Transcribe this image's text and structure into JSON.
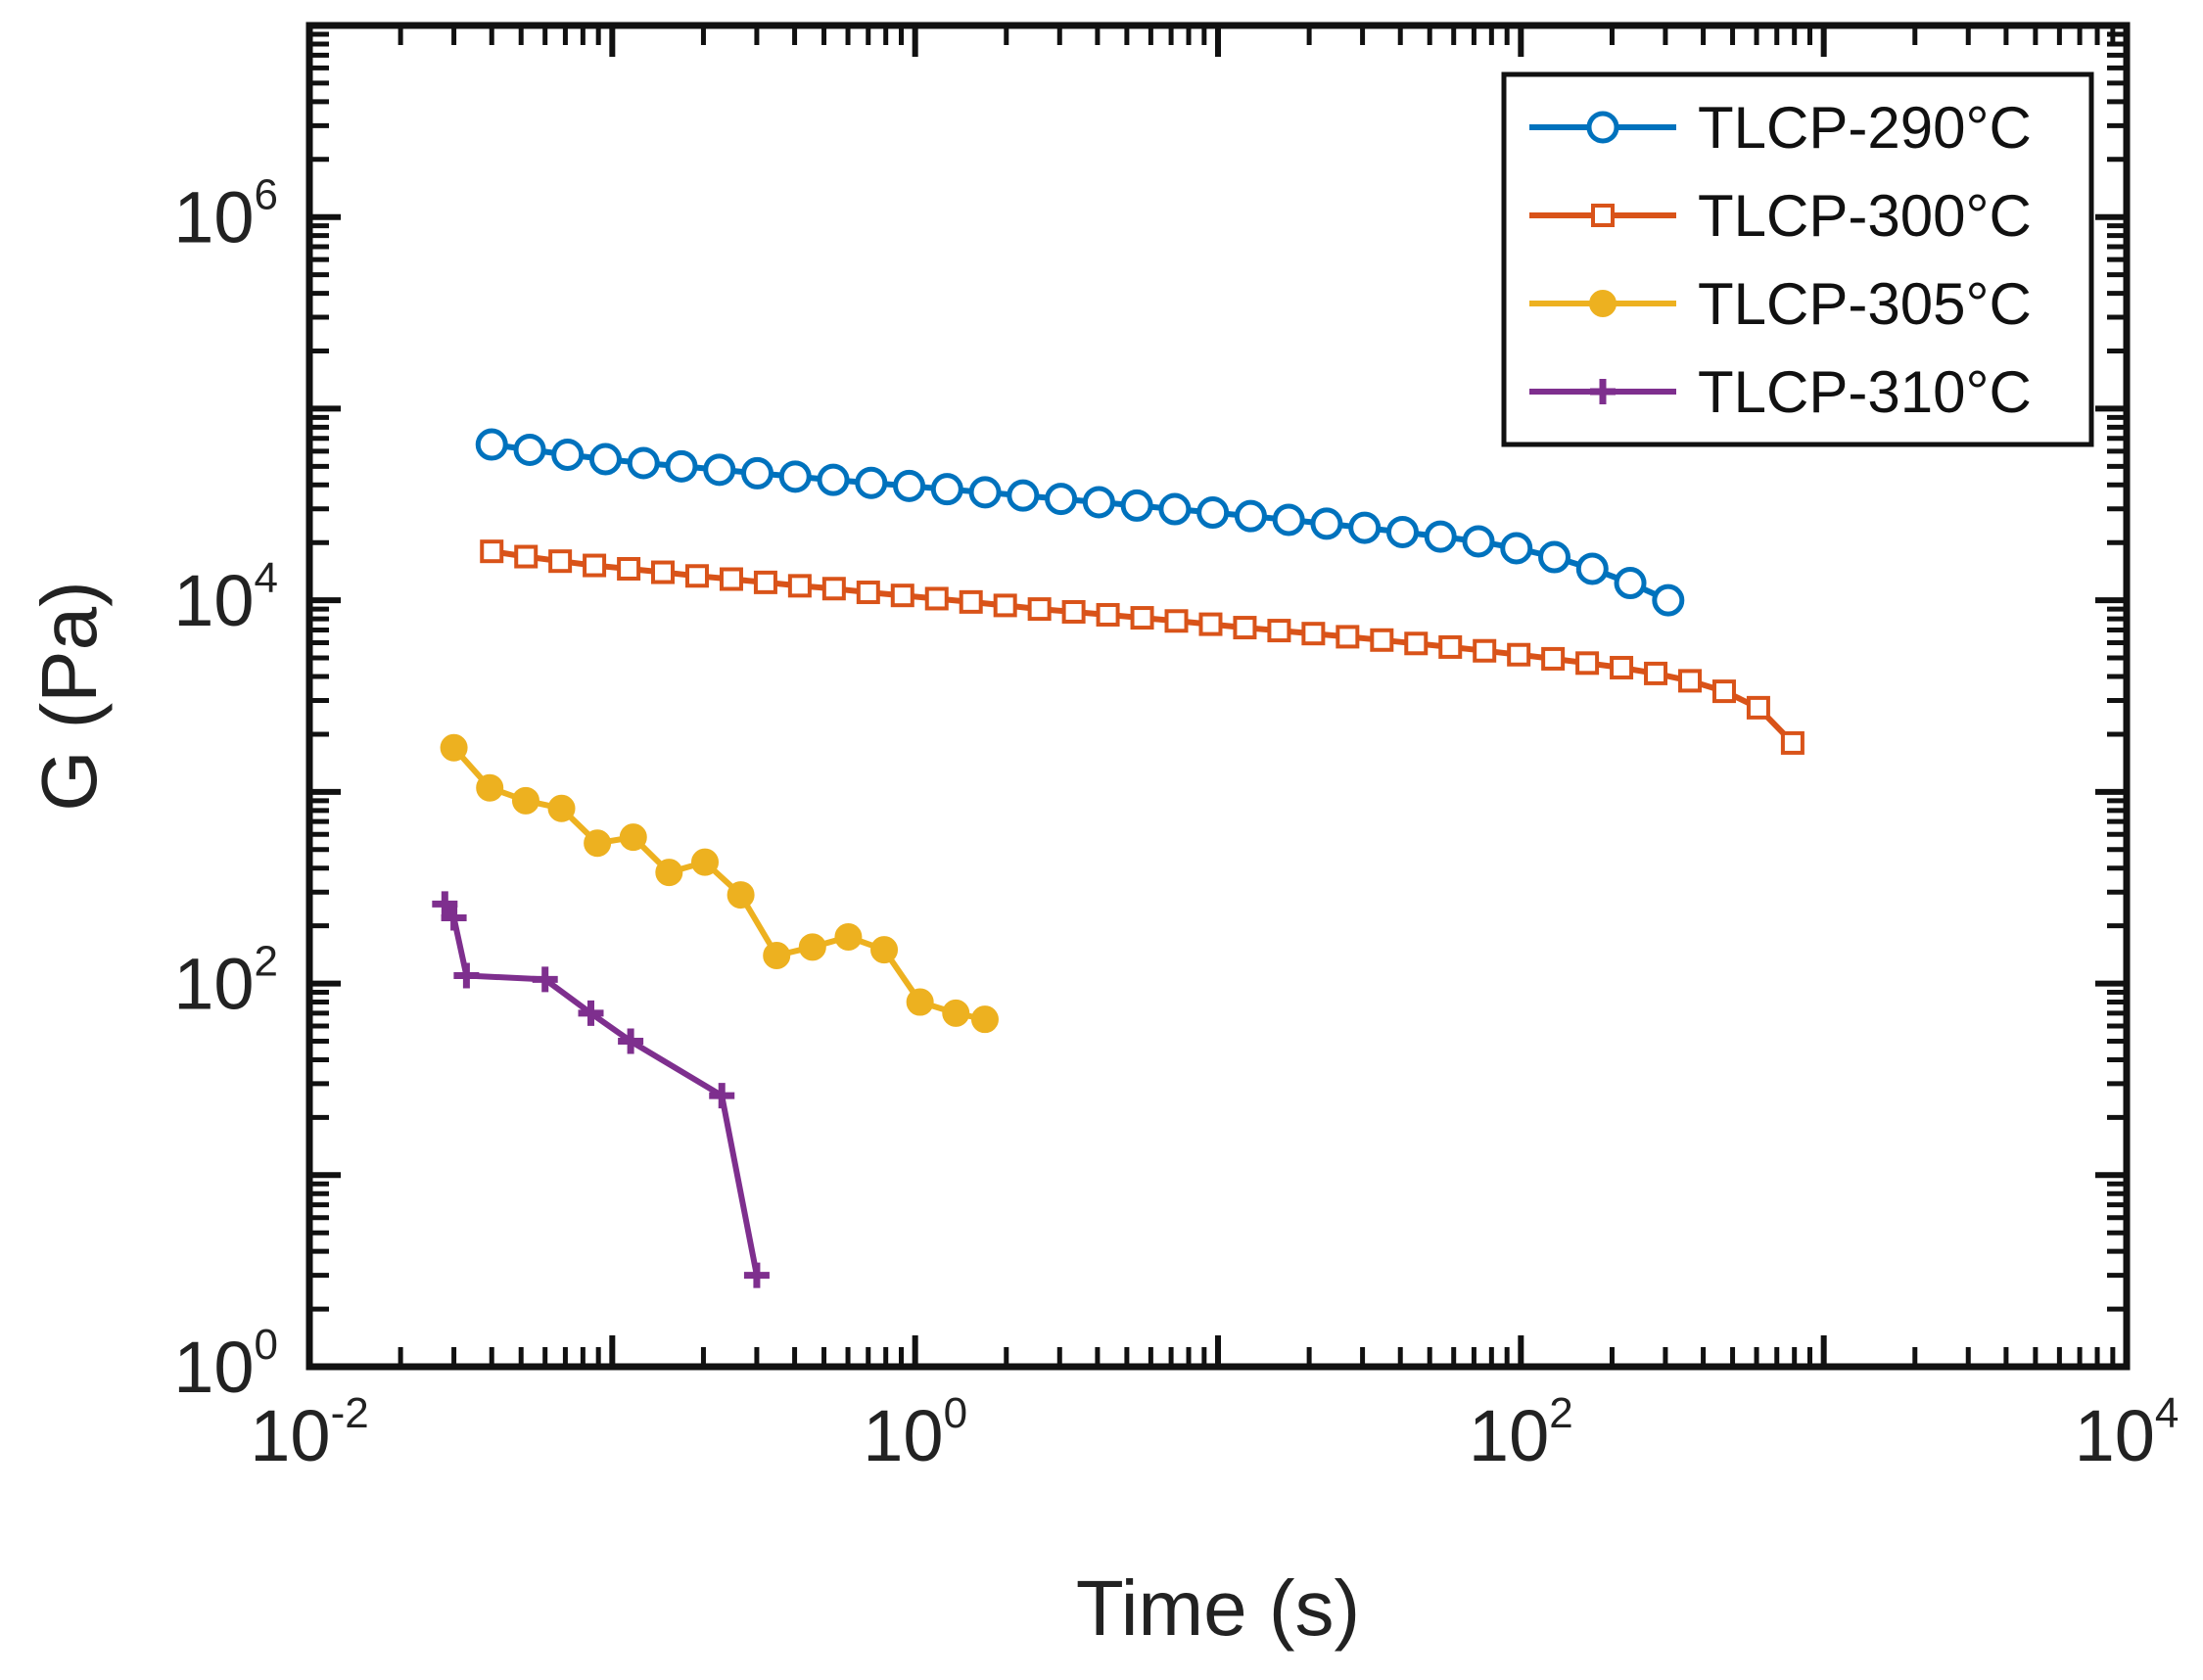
{
  "chart_data": {
    "type": "line",
    "title": "",
    "xlabel": "Time (s)",
    "ylabel": "G (Pa)",
    "xscale": "log",
    "yscale": "log",
    "xlim_exp": [
      -2,
      4
    ],
    "ylim_exp": [
      0,
      7
    ],
    "x_tick_labels": [
      {
        "base": "10",
        "exp": "-2"
      },
      {
        "base": "10",
        "exp": "0"
      },
      {
        "base": "10",
        "exp": "2"
      },
      {
        "base": "10",
        "exp": "4"
      }
    ],
    "y_tick_labels": [
      {
        "base": "10",
        "exp": "0"
      },
      {
        "base": "10",
        "exp": "2"
      },
      {
        "base": "10",
        "exp": "4"
      },
      {
        "base": "10",
        "exp": "6"
      }
    ],
    "legend_position": "top-right",
    "series": [
      {
        "name": "TLCP-290°C",
        "color": "#0072BD",
        "marker": "circle-open",
        "x": [
          0.04,
          0.0534,
          0.0712,
          0.095,
          0.1268,
          0.1692,
          0.2258,
          0.3013,
          0.402,
          0.5366,
          0.716,
          0.9555,
          1.275,
          1.7016,
          2.2707,
          3.0302,
          4.0437,
          5.3962,
          7.2012,
          9.6098,
          12.824,
          17.113,
          22.838,
          30.476,
          40.669,
          54.272,
          72.425,
          96.65,
          128.98,
          172.12,
          229.69,
          306.52
        ],
        "y": [
          65000,
          61000,
          57500,
          54500,
          52000,
          50000,
          48000,
          46000,
          44200,
          42500,
          41000,
          39500,
          38000,
          36600,
          35200,
          33800,
          32500,
          31200,
          29900,
          28700,
          27500,
          26300,
          25100,
          23900,
          22700,
          21500,
          20300,
          18700,
          16800,
          14600,
          12300,
          10000
        ]
      },
      {
        "name": "TLCP-300°C",
        "color": "#D95319",
        "marker": "square-open",
        "x": [
          0.04,
          0.0519,
          0.0673,
          0.0873,
          0.1133,
          0.1469,
          0.1906,
          0.2473,
          0.3208,
          0.4161,
          0.5398,
          0.7003,
          0.9085,
          1.1786,
          1.529,
          1.9836,
          2.5733,
          3.3383,
          4.3307,
          5.6182,
          7.2885,
          9.4553,
          12.266,
          15.913,
          20.644,
          26.781,
          34.743,
          45.071,
          58.47,
          75.853,
          98.403,
          127.66,
          165.61,
          214.84,
          278.71,
          361.57,
          469.06,
          608.51,
          789.41
        ],
        "y": [
          18000,
          16900,
          16000,
          15200,
          14600,
          14000,
          13400,
          12900,
          12400,
          11900,
          11500,
          11000,
          10600,
          10200,
          9800,
          9400,
          9000,
          8700,
          8400,
          8100,
          7800,
          7500,
          7200,
          6950,
          6700,
          6450,
          6200,
          5950,
          5700,
          5450,
          5200,
          4950,
          4700,
          4450,
          4150,
          3800,
          3350,
          2750,
          1800
        ]
      },
      {
        "name": "TLCP-305°C",
        "color": "#EDB120",
        "marker": "circle-filled",
        "x": [
          0.03,
          0.0394,
          0.0518,
          0.068,
          0.0893,
          0.1173,
          0.154,
          0.2023,
          0.2657,
          0.3489,
          0.4582,
          0.6017,
          0.7902,
          1.0378,
          1.3629,
          1.7
        ],
        "y": [
          1700,
          1050,
          900,
          820,
          540,
          580,
          380,
          430,
          290,
          140,
          155,
          175,
          150,
          80,
          70,
          65
        ]
      },
      {
        "name": "TLCP-310°C",
        "color": "#7E2F8E",
        "marker": "plus",
        "x": [
          0.028,
          0.03,
          0.033,
          0.06,
          0.085,
          0.115,
          0.23,
          0.3
        ],
        "y": [
          260,
          220,
          110,
          105,
          70,
          50,
          26,
          3
        ]
      }
    ]
  }
}
